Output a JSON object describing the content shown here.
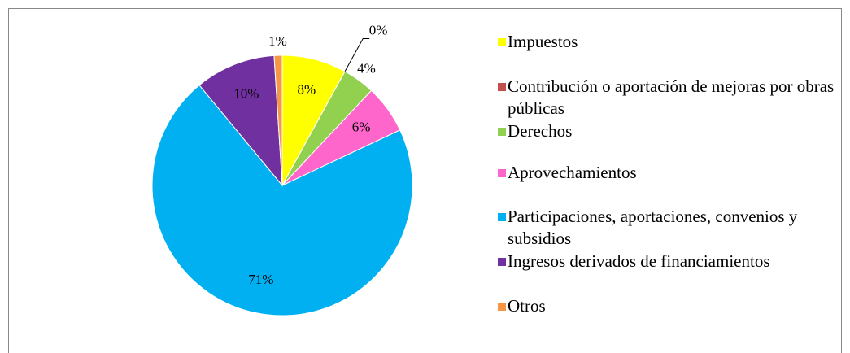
{
  "chart_data": {
    "type": "pie",
    "categories": [
      "Impuestos",
      "Contribución o aportación de mejoras por obras públicas",
      "Derechos",
      "Aprovechamientos",
      "Participaciones, aportaciones, convenios y subsidios",
      "Ingresos derivados de financiamientos",
      "Otros"
    ],
    "values": [
      8,
      0,
      4,
      6,
      71,
      10,
      1
    ],
    "value_labels": [
      "8%",
      "0%",
      "4%",
      "6%",
      "71%",
      "10%",
      "1%"
    ],
    "colors": [
      "#ffff00",
      "#c0504d",
      "#92d050",
      "#ff66cc",
      "#00b0f0",
      "#7030a0",
      "#f79646"
    ],
    "legend": "right"
  }
}
